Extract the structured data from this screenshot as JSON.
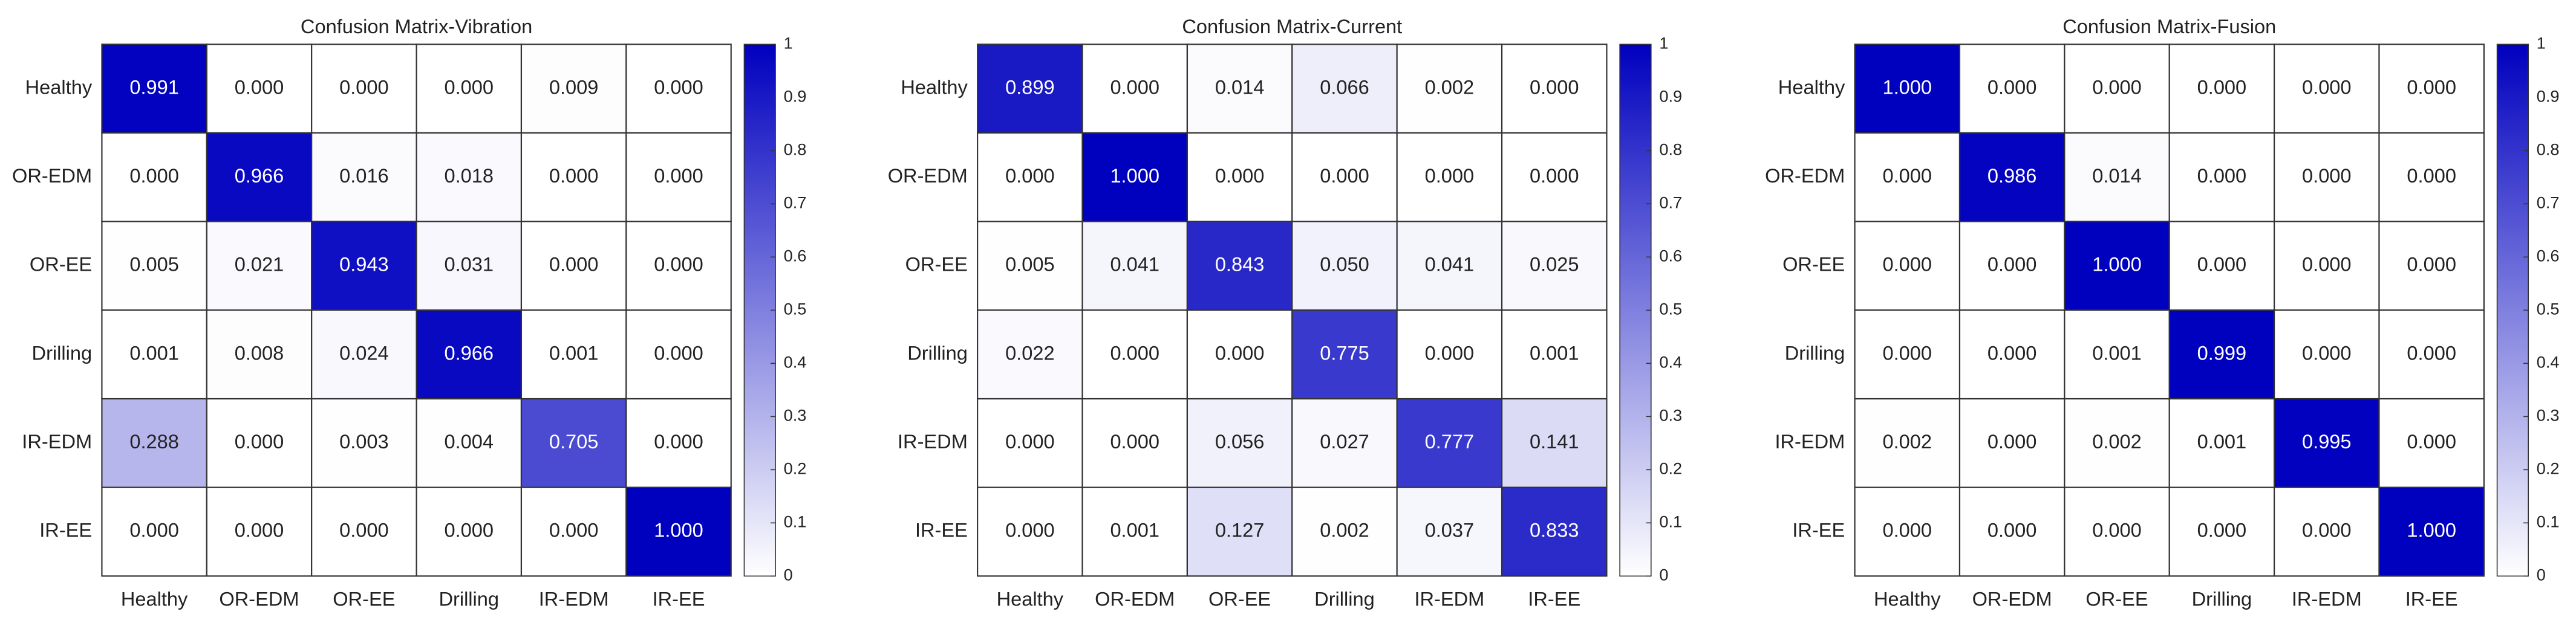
{
  "chart_data": [
    {
      "type": "heatmap",
      "title": "Confusion Matrix-Vibration",
      "x": [
        "Healthy",
        "OR-EDM",
        "OR-EE",
        "Drilling",
        "IR-EDM",
        "IR-EE"
      ],
      "y": [
        "Healthy",
        "OR-EDM",
        "OR-EE",
        "Drilling",
        "IR-EDM",
        "IR-EE"
      ],
      "values": [
        [
          0.991,
          0,
          0,
          0,
          0.009,
          0
        ],
        [
          0,
          0.966,
          0.016,
          0.018,
          0,
          0
        ],
        [
          0.005,
          0.021,
          0.943,
          0.031,
          0,
          0
        ],
        [
          0.001,
          0.008,
          0.024,
          0.966,
          0.001,
          0
        ],
        [
          0.288,
          0,
          0.003,
          0.004,
          0.705,
          0
        ],
        [
          0,
          0,
          0,
          0,
          0,
          1
        ]
      ],
      "value_labels": [
        [
          "0.991",
          "0.000",
          "0.000",
          "0.000",
          "0.009",
          "0.000"
        ],
        [
          "0.000",
          "0.966",
          "0.016",
          "0.018",
          "0.000",
          "0.000"
        ],
        [
          "0.005",
          "0.021",
          "0.943",
          "0.031",
          "0.000",
          "0.000"
        ],
        [
          "0.001",
          "0.008",
          "0.024",
          "0.966",
          "0.001",
          "0.000"
        ],
        [
          "0.288",
          "0.000",
          "0.003",
          "0.004",
          "0.705",
          "0.000"
        ],
        [
          "0.000",
          "0.000",
          "0.000",
          "0.000",
          "0.000",
          "1.000"
        ]
      ],
      "zlim": [
        0,
        1
      ],
      "zticks": [
        0,
        0.1,
        0.2,
        0.3,
        0.4,
        0.5,
        0.6,
        0.7,
        0.8,
        0.9,
        1
      ],
      "colormap": [
        "#ffffff",
        "#0000bf"
      ]
    },
    {
      "type": "heatmap",
      "title": "Confusion Matrix-Current",
      "x": [
        "Healthy",
        "OR-EDM",
        "OR-EE",
        "Drilling",
        "IR-EDM",
        "IR-EE"
      ],
      "y": [
        "Healthy",
        "OR-EDM",
        "OR-EE",
        "Drilling",
        "IR-EDM",
        "IR-EE"
      ],
      "values": [
        [
          0.899,
          0,
          0.014,
          0.066,
          0.002,
          0
        ],
        [
          0,
          1,
          0,
          0,
          0,
          0
        ],
        [
          0.005,
          0.041,
          0.843,
          0.05,
          0.041,
          0.025
        ],
        [
          0.022,
          0,
          0,
          0.775,
          0,
          0.001
        ],
        [
          0,
          0,
          0.056,
          0.027,
          0.777,
          0.141
        ],
        [
          0,
          0.001,
          0.127,
          0.002,
          0.037,
          0.833
        ]
      ],
      "value_labels": [
        [
          "0.899",
          "0.000",
          "0.014",
          "0.066",
          "0.002",
          "0.000"
        ],
        [
          "0.000",
          "1.000",
          "0.000",
          "0.000",
          "0.000",
          "0.000"
        ],
        [
          "0.005",
          "0.041",
          "0.843",
          "0.050",
          "0.041",
          "0.025"
        ],
        [
          "0.022",
          "0.000",
          "0.000",
          "0.775",
          "0.000",
          "0.001"
        ],
        [
          "0.000",
          "0.000",
          "0.056",
          "0.027",
          "0.777",
          "0.141"
        ],
        [
          "0.000",
          "0.001",
          "0.127",
          "0.002",
          "0.037",
          "0.833"
        ]
      ],
      "zlim": [
        0,
        1
      ],
      "zticks": [
        0,
        0.1,
        0.2,
        0.3,
        0.4,
        0.5,
        0.6,
        0.7,
        0.8,
        0.9,
        1
      ],
      "colormap": [
        "#ffffff",
        "#0000bf"
      ]
    },
    {
      "type": "heatmap",
      "title": "Confusion Matrix-Fusion",
      "x": [
        "Healthy",
        "OR-EDM",
        "OR-EE",
        "Drilling",
        "IR-EDM",
        "IR-EE"
      ],
      "y": [
        "Healthy",
        "OR-EDM",
        "OR-EE",
        "Drilling",
        "IR-EDM",
        "IR-EE"
      ],
      "values": [
        [
          1,
          0,
          0,
          0,
          0,
          0
        ],
        [
          0,
          0.986,
          0.014,
          0,
          0,
          0
        ],
        [
          0,
          0,
          1,
          0,
          0,
          0
        ],
        [
          0,
          0,
          0.001,
          0.999,
          0,
          0
        ],
        [
          0.002,
          0,
          0.002,
          0.001,
          0.995,
          0
        ],
        [
          0,
          0,
          0,
          0,
          0,
          1
        ]
      ],
      "value_labels": [
        [
          "1.000",
          "0.000",
          "0.000",
          "0.000",
          "0.000",
          "0.000"
        ],
        [
          "0.000",
          "0.986",
          "0.014",
          "0.000",
          "0.000",
          "0.000"
        ],
        [
          "0.000",
          "0.000",
          "1.000",
          "0.000",
          "0.000",
          "0.000"
        ],
        [
          "0.000",
          "0.000",
          "0.001",
          "0.999",
          "0.000",
          "0.000"
        ],
        [
          "0.002",
          "0.000",
          "0.002",
          "0.001",
          "0.995",
          "0.000"
        ],
        [
          "0.000",
          "0.000",
          "0.000",
          "0.000",
          "0.000",
          "1.000"
        ]
      ],
      "zlim": [
        0,
        1
      ],
      "zticks": [
        0,
        0.1,
        0.2,
        0.3,
        0.4,
        0.5,
        0.6,
        0.7,
        0.8,
        0.9,
        1
      ],
      "colormap": [
        "#ffffff",
        "#0000bf"
      ]
    }
  ]
}
